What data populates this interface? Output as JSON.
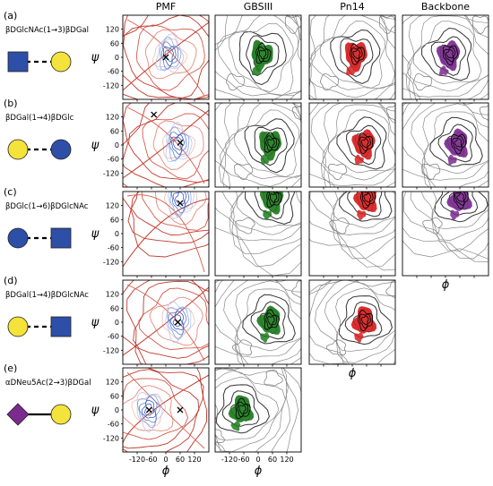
{
  "chart_data": {
    "type": "contour",
    "column_titles": [
      "PMF",
      "GBSIII",
      "Pn14",
      "Backbone"
    ],
    "x_axis_label": "ϕ",
    "y_axis_label": "ψ",
    "x_ticks": [
      "-120",
      "-60",
      "0",
      "60",
      "120"
    ],
    "y_ticks": [
      "120",
      "60",
      "0",
      "-60",
      "-120"
    ],
    "xlim": [
      -180,
      180
    ],
    "ylim": [
      -180,
      180
    ],
    "series_colors": {
      "PMF_low": "#3b5fc0",
      "PMF_high": "#c0392b",
      "GBSIII": "#1e7b1e",
      "Pn14": "#d62020",
      "Backbone": "#7b2a8f",
      "density_contour": "#555555"
    },
    "rows": [
      {
        "panel": "(a)",
        "linkage": "βDGlcNAc(1→3)βDGal",
        "glycan": [
          {
            "shape": "square",
            "color": "#2e4fa8"
          },
          {
            "shape": "circle",
            "color": "#f3e33b"
          }
        ],
        "bond": "dashed",
        "columns": [
          "PMF",
          "GBSIII",
          "Pn14",
          "Backbone"
        ],
        "minima": [
          [
            0,
            0
          ]
        ],
        "center": [
          15,
          10
        ],
        "show_x_ticklabels": false
      },
      {
        "panel": "(b)",
        "linkage": "βDGal(1→4)βDGlc",
        "glycan": [
          {
            "shape": "circle",
            "color": "#f3e33b"
          },
          {
            "shape": "circle",
            "color": "#2e4fa8"
          }
        ],
        "bond": "dashed",
        "columns": [
          "PMF",
          "GBSIII",
          "Pn14",
          "Backbone"
        ],
        "minima": [
          [
            -50,
            130
          ],
          [
            60,
            10
          ]
        ],
        "center": [
          50,
          5
        ],
        "show_x_ticklabels": false
      },
      {
        "panel": "(c)",
        "linkage": "βDGlc(1→6)βDGlcNAc",
        "glycan": [
          {
            "shape": "circle",
            "color": "#2e4fa8"
          },
          {
            "shape": "square",
            "color": "#2e4fa8"
          }
        ],
        "bond": "dashed",
        "columns": [
          "PMF",
          "GBSIII",
          "Pn14",
          "Backbone"
        ],
        "minima": [
          [
            60,
            130
          ]
        ],
        "center": [
          60,
          150
        ],
        "show_x_ticklabels": false
      },
      {
        "panel": "(d)",
        "linkage": "βDGal(1→4)βDGlcNAc",
        "glycan": [
          {
            "shape": "circle",
            "color": "#f3e33b"
          },
          {
            "shape": "square",
            "color": "#2e4fa8"
          }
        ],
        "bond": "dashed",
        "columns": [
          "PMF",
          "GBSIII",
          "Pn14"
        ],
        "minima": [
          [
            50,
            0
          ]
        ],
        "center": [
          50,
          5
        ],
        "show_x_ticklabels": false
      },
      {
        "panel": "(e)",
        "linkage": "αDNeu5Ac(2→3)βDGal",
        "glycan": [
          {
            "shape": "diamond",
            "color": "#7b2a8f"
          },
          {
            "shape": "circle",
            "color": "#f3e33b"
          }
        ],
        "bond": "solid",
        "columns": [
          "PMF",
          "GBSIII"
        ],
        "minima": [
          [
            -70,
            0
          ],
          [
            60,
            0
          ]
        ],
        "center": [
          -70,
          0
        ],
        "show_x_ticklabels": true
      }
    ]
  }
}
